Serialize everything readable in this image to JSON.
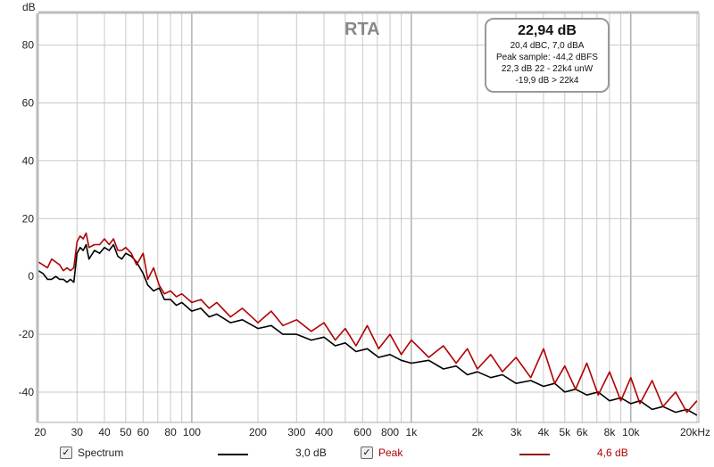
{
  "chart_data": {
    "type": "line",
    "title": "RTA",
    "ylabel": "dB",
    "xlabel": "",
    "xscale": "log",
    "xlim": [
      20,
      20000
    ],
    "ylim": [
      -50.5,
      91
    ],
    "grid": true,
    "y_ticks": [
      80,
      60,
      40,
      20,
      0,
      -20,
      -40
    ],
    "x_ticks": [
      {
        "v": 20,
        "label": "20"
      },
      {
        "v": 30,
        "label": "30"
      },
      {
        "v": 40,
        "label": "40"
      },
      {
        "v": 50,
        "label": "50"
      },
      {
        "v": 60,
        "label": "60"
      },
      {
        "v": 80,
        "label": "80"
      },
      {
        "v": 100,
        "label": "100"
      },
      {
        "v": 200,
        "label": "200"
      },
      {
        "v": 300,
        "label": "300"
      },
      {
        "v": 400,
        "label": "400"
      },
      {
        "v": 600,
        "label": "600"
      },
      {
        "v": 800,
        "label": "800"
      },
      {
        "v": 1000,
        "label": "1k"
      },
      {
        "v": 2000,
        "label": "2k"
      },
      {
        "v": 3000,
        "label": "3k"
      },
      {
        "v": 4000,
        "label": "4k"
      },
      {
        "v": 5000,
        "label": "5k"
      },
      {
        "v": 6000,
        "label": "6k"
      },
      {
        "v": 8000,
        "label": "8k"
      },
      {
        "v": 10000,
        "label": "10k"
      },
      {
        "v": 20000,
        "label": "20kHz"
      }
    ],
    "x": [
      20,
      21,
      22,
      23,
      24,
      25,
      26,
      27,
      28,
      29,
      30,
      31,
      32,
      33,
      34,
      36,
      38,
      40,
      42,
      44,
      46,
      48,
      50,
      53,
      56,
      60,
      63,
      67,
      71,
      75,
      80,
      85,
      90,
      100,
      110,
      120,
      130,
      150,
      170,
      200,
      230,
      260,
      300,
      350,
      400,
      450,
      500,
      560,
      630,
      710,
      800,
      900,
      1000,
      1200,
      1400,
      1600,
      1800,
      2000,
      2300,
      2600,
      3000,
      3500,
      4000,
      4500,
      5000,
      5600,
      6300,
      7100,
      8000,
      9000,
      10000,
      11000,
      12500,
      14000,
      16000,
      18000,
      20000
    ],
    "series": [
      {
        "name": "Spectrum",
        "color": "#000000",
        "values": [
          2,
          1,
          -1,
          -1,
          0,
          -1,
          -1,
          -2,
          -1,
          -2,
          8,
          10,
          9,
          11,
          6,
          9,
          8,
          10,
          9,
          11,
          7,
          6,
          8,
          7,
          5,
          1,
          -3,
          -5,
          -4,
          -8,
          -8,
          -10,
          -9,
          -12,
          -11,
          -14,
          -13,
          -16,
          -15,
          -18,
          -17,
          -20,
          -20,
          -22,
          -21,
          -24,
          -23,
          -26,
          -25,
          -28,
          -27,
          -29,
          -30,
          -29,
          -32,
          -31,
          -34,
          -33,
          -35,
          -34,
          -37,
          -36,
          -38,
          -37,
          -40,
          -39,
          -41,
          -40,
          -43,
          -42,
          -44,
          -43,
          -46,
          -45,
          -47,
          -46,
          -48
        ]
      },
      {
        "name": "Peak",
        "color": "#b00000",
        "values": [
          5,
          4,
          3,
          6,
          5,
          4,
          2,
          3,
          2,
          3,
          12,
          14,
          13,
          15,
          10,
          11,
          11,
          13,
          11,
          13,
          9,
          9,
          10,
          8,
          4,
          8,
          -1,
          3,
          -3,
          -6,
          -5,
          -7,
          -6,
          -9,
          -8,
          -11,
          -9,
          -14,
          -11,
          -16,
          -12,
          -17,
          -15,
          -19,
          -16,
          -22,
          -18,
          -24,
          -17,
          -25,
          -20,
          -27,
          -22,
          -28,
          -24,
          -30,
          -25,
          -32,
          -27,
          -33,
          -28,
          -35,
          -25,
          -37,
          -31,
          -39,
          -30,
          -41,
          -33,
          -43,
          -35,
          -44,
          -36,
          -45,
          -40,
          -47,
          -43
        ]
      }
    ]
  },
  "info": {
    "total": "22,94 dB",
    "line1": "20,4 dBC, 7,0 dBA",
    "line2": "Peak sample: -44,2 dBFS",
    "line3": "22,3 dB 22 - 22k4 unW",
    "line4": "-19,9 dB > 22k4"
  },
  "legend": [
    {
      "label": "Spectrum",
      "checked": true,
      "value": "3,0 dB",
      "color": "#000000"
    },
    {
      "label": "Peak",
      "checked": true,
      "value": "4,6 dB",
      "color": "#b00000"
    }
  ]
}
